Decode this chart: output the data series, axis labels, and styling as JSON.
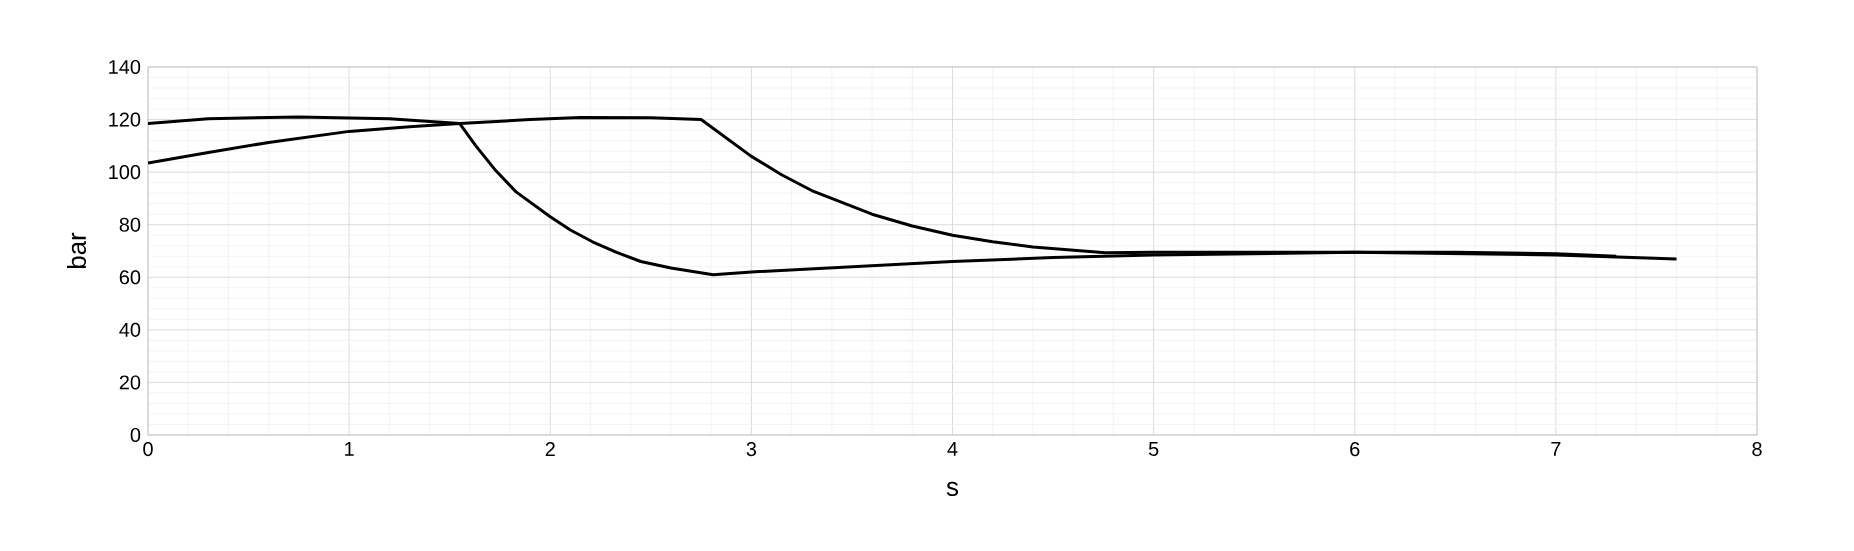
{
  "chart_data": {
    "type": "line",
    "xlabel": "s",
    "ylabel": "bar",
    "xlim": [
      0,
      8
    ],
    "xticks": [
      0,
      1,
      2,
      3,
      4,
      5,
      6,
      7,
      8
    ],
    "ylim": [
      0,
      140
    ],
    "yticks": [
      0,
      20,
      40,
      60,
      80,
      100,
      120,
      140
    ],
    "grid": true,
    "marker": "none",
    "line_style": "solid",
    "series": [
      {
        "color": "#000000",
        "x": [
          0,
          0.3,
          0.75,
          1.2,
          1.55,
          1.63,
          1.73,
          1.83,
          2.0,
          2.1,
          2.21,
          2.33,
          2.45,
          2.6,
          2.81,
          3.0,
          3.5,
          4.0,
          4.5,
          5.0,
          5.5,
          6.0,
          6.5,
          7.0,
          7.3
        ],
        "values": [
          118.5,
          120.3,
          121,
          120.3,
          118.5,
          110,
          100.5,
          92.5,
          83,
          78,
          73.5,
          69.5,
          66,
          63.5,
          61,
          62,
          64,
          66,
          67.5,
          68.5,
          69,
          69.5,
          69.5,
          69,
          68
        ]
      },
      {
        "color": "#000000",
        "x": [
          0,
          0.3,
          0.6,
          1.0,
          1.3,
          1.55,
          1.9,
          2.15,
          2.5,
          2.75,
          3.0,
          3.15,
          3.3,
          3.6,
          3.8,
          4.0,
          4.2,
          4.4,
          4.76,
          5.0,
          5.5,
          6.0,
          6.5,
          7.0,
          7.6
        ],
        "values": [
          103.5,
          107.5,
          111.3,
          115.5,
          117.3,
          118.5,
          120,
          120.8,
          120.7,
          120,
          106,
          99,
          93,
          84,
          79.5,
          76,
          73.5,
          71.5,
          69.3,
          69.5,
          69.5,
          69.5,
          69,
          68.5,
          67
        ]
      }
    ]
  }
}
